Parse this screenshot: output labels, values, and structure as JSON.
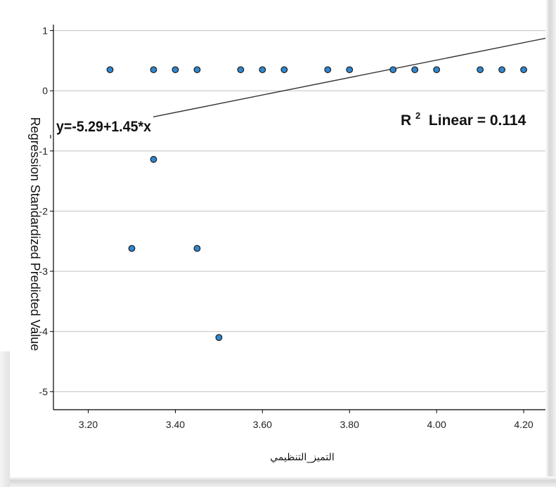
{
  "chart_data": {
    "type": "scatter",
    "title": "",
    "xlabel": "التميز_التنظيمي",
    "ylabel": "Regression Standardized Predicted Value",
    "xlim": [
      3.12,
      4.25
    ],
    "ylim": [
      -5.3,
      1.1
    ],
    "x_ticks": [
      "3.20",
      "3.40",
      "3.60",
      "3.80",
      "4.00",
      "4.20"
    ],
    "x_tick_values": [
      3.2,
      3.4,
      3.6,
      3.8,
      4.0,
      4.2
    ],
    "y_ticks": [
      "1",
      "0",
      "-1",
      "-2",
      "-3",
      "-4",
      "-5"
    ],
    "y_tick_values": [
      1,
      0,
      -1,
      -2,
      -3,
      -4,
      -5
    ],
    "grid": "horizontal",
    "points": [
      {
        "x": 3.25,
        "y": 0.35
      },
      {
        "x": 3.35,
        "y": 0.35
      },
      {
        "x": 3.4,
        "y": 0.35
      },
      {
        "x": 3.45,
        "y": 0.35
      },
      {
        "x": 3.55,
        "y": 0.35
      },
      {
        "x": 3.6,
        "y": 0.35
      },
      {
        "x": 3.65,
        "y": 0.35
      },
      {
        "x": 3.75,
        "y": 0.35
      },
      {
        "x": 3.8,
        "y": 0.35
      },
      {
        "x": 3.9,
        "y": 0.35
      },
      {
        "x": 3.95,
        "y": 0.35
      },
      {
        "x": 4.0,
        "y": 0.35
      },
      {
        "x": 4.1,
        "y": 0.35
      },
      {
        "x": 4.15,
        "y": 0.35
      },
      {
        "x": 4.2,
        "y": 0.35
      },
      {
        "x": 3.35,
        "y": -1.14
      },
      {
        "x": 3.3,
        "y": -2.62
      },
      {
        "x": 3.45,
        "y": -2.62
      },
      {
        "x": 3.5,
        "y": -4.1
      }
    ],
    "fit_line": {
      "intercept": -5.29,
      "slope": 1.45,
      "x_range": [
        3.12,
        4.25
      ]
    },
    "annotations": {
      "equation": "y=-5.29+1.45*x",
      "r2_prefix": "R",
      "r2_sup": "2",
      "r2_suffix": " Linear = 0.114"
    },
    "colors": {
      "point_fill": "#2f87d0",
      "point_stroke": "#1a1a1a",
      "fit_line": "#333333",
      "grid": "#c8c8c8",
      "axis": "#000000"
    }
  }
}
